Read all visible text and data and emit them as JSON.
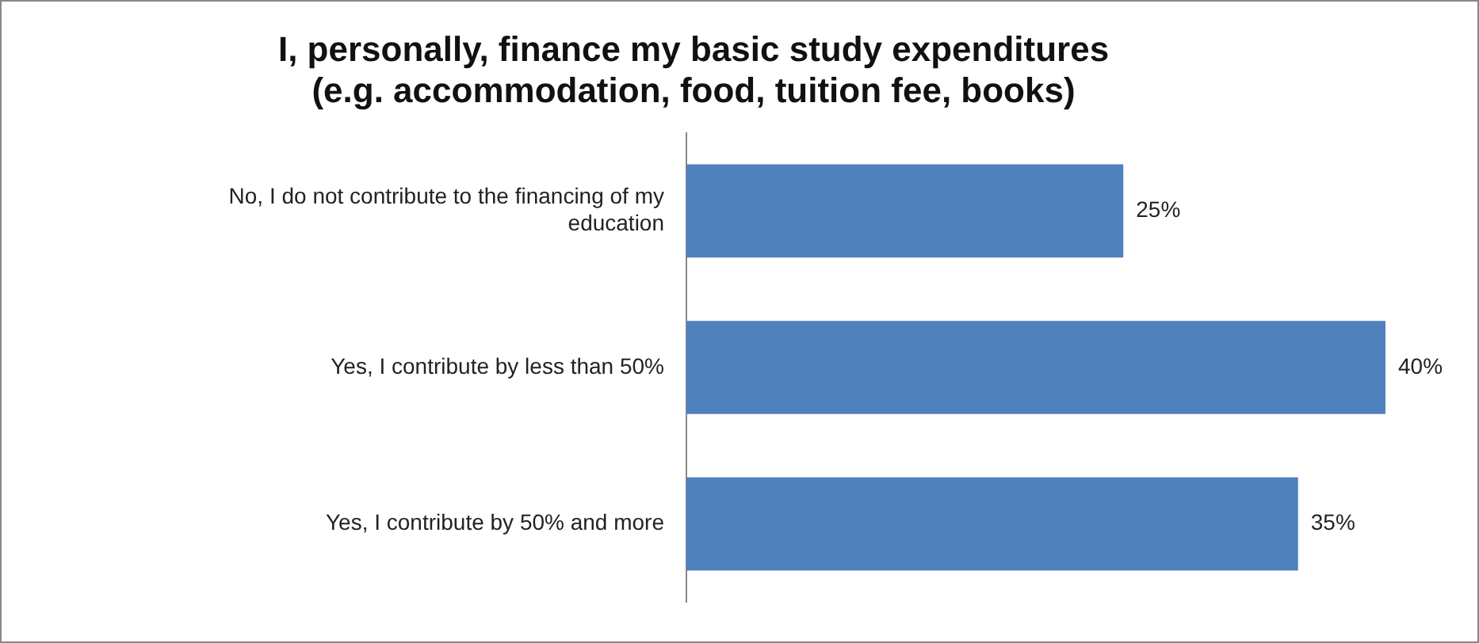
{
  "chart_data": {
    "type": "bar",
    "orientation": "horizontal",
    "title": "I, personally, finance my basic study expenditures\n(e.g. accommodation, food, tuition fee, books)",
    "categories": [
      "No, I do not contribute to the financing of my education",
      "Yes, I contribute by less than 50%",
      "Yes, I contribute by 50% and more"
    ],
    "values": [
      25,
      40,
      35
    ],
    "value_labels": [
      "25%",
      "40%",
      "35%"
    ],
    "color": "#4f81bd",
    "xlim": [
      0,
      40
    ],
    "tick_labels": "y",
    "legend": false
  }
}
